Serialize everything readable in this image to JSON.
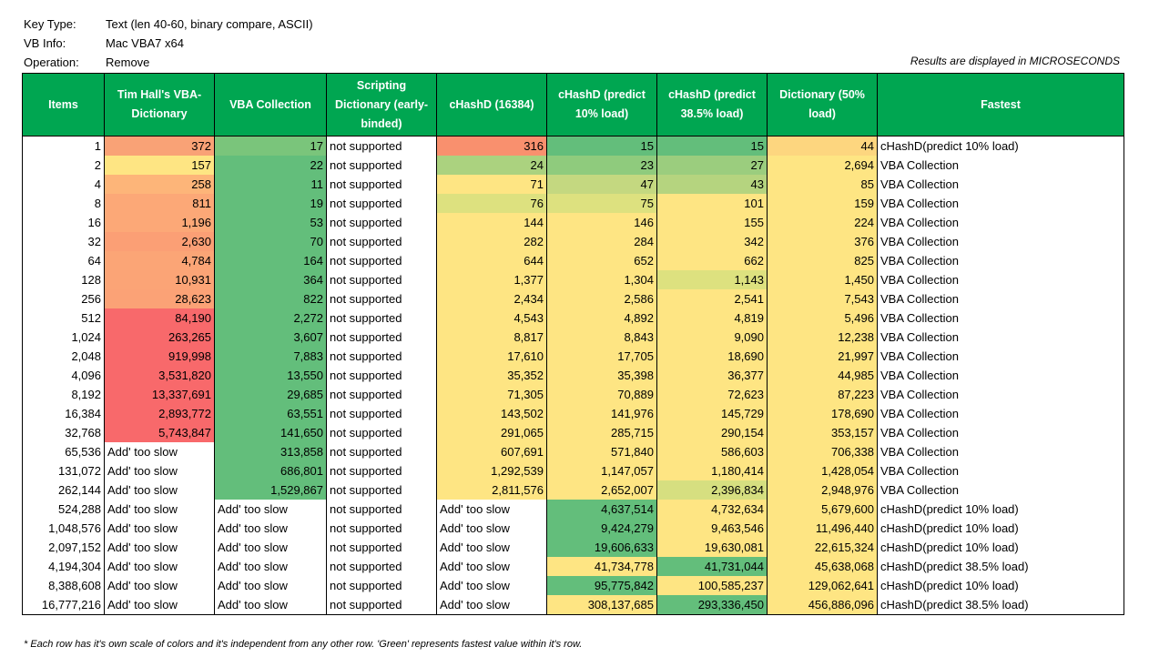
{
  "meta": [
    {
      "key": "Key Type:",
      "value": "Text (len 40-60, binary compare, ASCII)"
    },
    {
      "key": "VB Info:",
      "value": "Mac VBA7 x64"
    },
    {
      "key": "Operation:",
      "value": "Remove"
    }
  ],
  "results_note": "Results are displayed in MICROSECONDS",
  "headers": [
    "Items",
    "Tim Hall's VBA-Dictionary",
    "VBA Collection",
    "Scripting Dictionary (early-binded)",
    "cHashD (16384)",
    "cHashD (predict 10% load)",
    "cHashD (predict 38.5% load)",
    "Dictionary (50% load)",
    "Fastest"
  ],
  "colors": {
    "header": "#00a651"
  },
  "rows": [
    {
      "cells": [
        "1",
        "372",
        "17",
        "not supported",
        "316",
        "15",
        "15",
        "44",
        "cHashD(predict 10% load)"
      ],
      "bg": [
        "",
        "#f9a276",
        "#7ac57b",
        "",
        "#f9906e",
        "#63be7b",
        "#63be7b",
        "#fdd67f",
        ""
      ]
    },
    {
      "cells": [
        "2",
        "157",
        "22",
        "not supported",
        "24",
        "23",
        "27",
        "2,694",
        "VBA Collection"
      ],
      "bg": [
        "",
        "#fee583",
        "#63be7b",
        "",
        "#abd27f",
        "#8fcb7d",
        "#9bcd7e",
        "#fee583",
        ""
      ]
    },
    {
      "cells": [
        "4",
        "258",
        "11",
        "not supported",
        "71",
        "47",
        "43",
        "85",
        "VBA Collection"
      ],
      "bg": [
        "",
        "#fdb579",
        "#63be7b",
        "",
        "#fee583",
        "#c4d880",
        "#b5d47f",
        "#fee583",
        ""
      ]
    },
    {
      "cells": [
        "8",
        "811",
        "19",
        "not supported",
        "76",
        "75",
        "101",
        "159",
        "VBA Collection"
      ],
      "bg": [
        "",
        "#fca877",
        "#63be7b",
        "",
        "#dde17f",
        "#dde17f",
        "#fee583",
        "#fee583",
        ""
      ]
    },
    {
      "cells": [
        "16",
        "1,196",
        "53",
        "not supported",
        "144",
        "146",
        "155",
        "224",
        "VBA Collection"
      ],
      "bg": [
        "",
        "#fca877",
        "#63be7b",
        "",
        "#fee583",
        "#fee583",
        "#fee583",
        "#fee583",
        ""
      ]
    },
    {
      "cells": [
        "32",
        "2,630",
        "70",
        "not supported",
        "282",
        "284",
        "342",
        "376",
        "VBA Collection"
      ],
      "bg": [
        "",
        "#fb9f75",
        "#63be7b",
        "",
        "#fee583",
        "#fee583",
        "#fee583",
        "#fee583",
        ""
      ]
    },
    {
      "cells": [
        "64",
        "4,784",
        "164",
        "not supported",
        "644",
        "652",
        "662",
        "825",
        "VBA Collection"
      ],
      "bg": [
        "",
        "#fba576",
        "#63be7b",
        "",
        "#fee583",
        "#fee583",
        "#fee583",
        "#fee583",
        ""
      ]
    },
    {
      "cells": [
        "128",
        "10,931",
        "364",
        "not supported",
        "1,377",
        "1,304",
        "1,143",
        "1,450",
        "VBA Collection"
      ],
      "bg": [
        "",
        "#fba476",
        "#63be7b",
        "",
        "#fee583",
        "#fee583",
        "#dde17f",
        "#fee583",
        ""
      ]
    },
    {
      "cells": [
        "256",
        "28,623",
        "822",
        "not supported",
        "2,434",
        "2,586",
        "2,541",
        "7,543",
        "VBA Collection"
      ],
      "bg": [
        "",
        "#fba276",
        "#63be7b",
        "",
        "#fee583",
        "#fee583",
        "#fee583",
        "#fee583",
        ""
      ]
    },
    {
      "cells": [
        "512",
        "84,190",
        "2,272",
        "not supported",
        "4,543",
        "4,892",
        "4,819",
        "5,496",
        "VBA Collection"
      ],
      "bg": [
        "",
        "#f8696b",
        "#63be7b",
        "",
        "#fee583",
        "#fee583",
        "#fee583",
        "#fee583",
        ""
      ]
    },
    {
      "cells": [
        "1,024",
        "263,265",
        "3,607",
        "not supported",
        "8,817",
        "8,843",
        "9,090",
        "12,238",
        "VBA Collection"
      ],
      "bg": [
        "",
        "#f8696b",
        "#63be7b",
        "",
        "#fee583",
        "#fee583",
        "#fee583",
        "#fee583",
        ""
      ]
    },
    {
      "cells": [
        "2,048",
        "919,998",
        "7,883",
        "not supported",
        "17,610",
        "17,705",
        "18,690",
        "21,997",
        "VBA Collection"
      ],
      "bg": [
        "",
        "#f8696b",
        "#63be7b",
        "",
        "#fee583",
        "#fee583",
        "#fee583",
        "#fee583",
        ""
      ]
    },
    {
      "cells": [
        "4,096",
        "3,531,820",
        "13,550",
        "not supported",
        "35,352",
        "35,398",
        "36,377",
        "44,985",
        "VBA Collection"
      ],
      "bg": [
        "",
        "#f8696b",
        "#63be7b",
        "",
        "#fee583",
        "#fee583",
        "#fee583",
        "#fee583",
        ""
      ]
    },
    {
      "cells": [
        "8,192",
        "13,337,691",
        "29,685",
        "not supported",
        "71,305",
        "70,889",
        "72,623",
        "87,223",
        "VBA Collection"
      ],
      "bg": [
        "",
        "#f8696b",
        "#63be7b",
        "",
        "#fee583",
        "#fee583",
        "#fee583",
        "#fee583",
        ""
      ]
    },
    {
      "cells": [
        "16,384",
        "2,893,772",
        "63,551",
        "not supported",
        "143,502",
        "141,976",
        "145,729",
        "178,690",
        "VBA Collection"
      ],
      "bg": [
        "",
        "#f8696b",
        "#63be7b",
        "",
        "#fee583",
        "#fee583",
        "#fee583",
        "#fee583",
        ""
      ]
    },
    {
      "cells": [
        "32,768",
        "5,743,847",
        "141,650",
        "not supported",
        "291,065",
        "285,715",
        "290,154",
        "353,157",
        "VBA Collection"
      ],
      "bg": [
        "",
        "#f8696b",
        "#63be7b",
        "",
        "#fee583",
        "#fee583",
        "#fee583",
        "#fee583",
        ""
      ]
    },
    {
      "cells": [
        "65,536",
        "Add' too slow",
        "313,858",
        "not supported",
        "607,691",
        "571,840",
        "586,603",
        "706,338",
        "VBA Collection"
      ],
      "bg": [
        "",
        "",
        "#63be7b",
        "",
        "#fee583",
        "#fee583",
        "#fee583",
        "#fee583",
        ""
      ]
    },
    {
      "cells": [
        "131,072",
        "Add' too slow",
        "686,801",
        "not supported",
        "1,292,539",
        "1,147,057",
        "1,180,414",
        "1,428,054",
        "VBA Collection"
      ],
      "bg": [
        "",
        "",
        "#63be7b",
        "",
        "#fee583",
        "#fee583",
        "#fee583",
        "#fee583",
        ""
      ]
    },
    {
      "cells": [
        "262,144",
        "Add' too slow",
        "1,529,867",
        "not supported",
        "2,811,576",
        "2,652,007",
        "2,396,834",
        "2,948,976",
        "VBA Collection"
      ],
      "bg": [
        "",
        "",
        "#63be7b",
        "",
        "#fee583",
        "#fee583",
        "#d6df80",
        "#fee583",
        ""
      ]
    },
    {
      "cells": [
        "524,288",
        "Add' too slow",
        "Add' too slow",
        "not supported",
        "Add' too slow",
        "4,637,514",
        "4,732,634",
        "5,679,600",
        "cHashD(predict 10% load)"
      ],
      "bg": [
        "",
        "",
        "",
        "",
        "",
        "#63be7b",
        "#fee583",
        "#fee583",
        ""
      ]
    },
    {
      "cells": [
        "1,048,576",
        "Add' too slow",
        "Add' too slow",
        "not supported",
        "Add' too slow",
        "9,424,279",
        "9,463,546",
        "11,496,440",
        "cHashD(predict 10% load)"
      ],
      "bg": [
        "",
        "",
        "",
        "",
        "",
        "#63be7b",
        "#fee583",
        "#fee583",
        ""
      ]
    },
    {
      "cells": [
        "2,097,152",
        "Add' too slow",
        "Add' too slow",
        "not supported",
        "Add' too slow",
        "19,606,633",
        "19,630,081",
        "22,615,324",
        "cHashD(predict 10% load)"
      ],
      "bg": [
        "",
        "",
        "",
        "",
        "",
        "#63be7b",
        "#fee583",
        "#fee583",
        ""
      ]
    },
    {
      "cells": [
        "4,194,304",
        "Add' too slow",
        "Add' too slow",
        "not supported",
        "Add' too slow",
        "41,734,778",
        "41,731,044",
        "45,638,068",
        "cHashD(predict 38.5% load)"
      ],
      "bg": [
        "",
        "",
        "",
        "",
        "",
        "#fee583",
        "#63be7b",
        "#fee583",
        ""
      ]
    },
    {
      "cells": [
        "8,388,608",
        "Add' too slow",
        "Add' too slow",
        "not supported",
        "Add' too slow",
        "95,775,842",
        "100,585,237",
        "129,062,641",
        "cHashD(predict 10% load)"
      ],
      "bg": [
        "",
        "",
        "",
        "",
        "",
        "#63be7b",
        "#fee583",
        "#fee583",
        ""
      ]
    },
    {
      "cells": [
        "16,777,216",
        "Add' too slow",
        "Add' too slow",
        "not supported",
        "Add' too slow",
        "308,137,685",
        "293,336,450",
        "456,886,096",
        "cHashD(predict 38.5% load)"
      ],
      "bg": [
        "",
        "",
        "",
        "",
        "",
        "#fee583",
        "#63be7b",
        "#fee583",
        ""
      ]
    }
  ],
  "footnote": "* Each row has it's own scale of colors and it's independent from any other row. 'Green' represents fastest value within it's row."
}
